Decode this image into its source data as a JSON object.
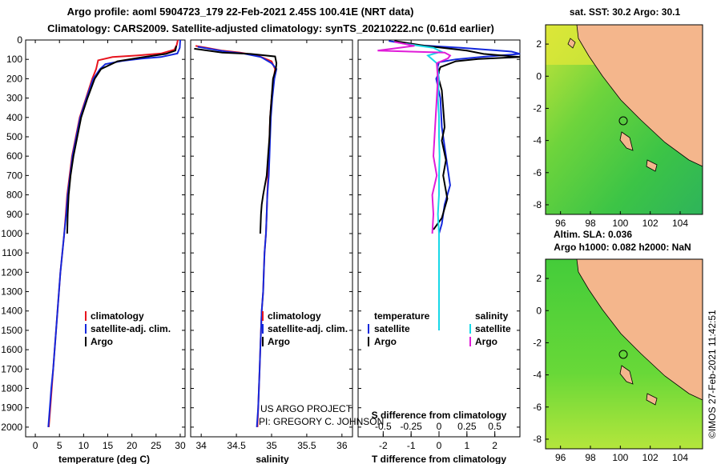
{
  "header": {
    "line1": "Argo profile: aoml 5904723_179 22-Feb-2021 2.45S 100.41E (NRT data)",
    "line2": "Climatology: CARS2009. Satellite-adjusted climatology: synTS_20210222.nc (0.61d earlier)"
  },
  "colors": {
    "climatology": "#e8141e",
    "satellite": "#1428dc",
    "argo": "#000000",
    "sat_salinity": "#18d8e8",
    "argo_salinity": "#e01cd8"
  },
  "chart_data": [
    {
      "type": "line",
      "id": "temperature",
      "xlabel": "temperature (deg C)",
      "xlim": [
        -2,
        31
      ],
      "ylim": [
        2050,
        0
      ],
      "xticks": [
        0,
        5,
        10,
        15,
        20,
        25,
        30
      ],
      "yticks": [
        0,
        100,
        200,
        300,
        400,
        500,
        600,
        700,
        800,
        900,
        1000,
        1100,
        1200,
        1300,
        1400,
        1500,
        1600,
        1700,
        1800,
        1900,
        2000
      ],
      "legend": {
        "climatology": "climatology",
        "satellite": "satellite-adj. clim.",
        "argo": "Argo"
      },
      "series": [
        {
          "name": "climatology",
          "color": "#e8141e",
          "points": [
            [
              29.5,
              0
            ],
            [
              29.3,
              25
            ],
            [
              28.8,
              50
            ],
            [
              26,
              70
            ],
            [
              21,
              80
            ],
            [
              16,
              88
            ],
            [
              13,
              105
            ],
            [
              12.6,
              150
            ],
            [
              11.8,
              200
            ],
            [
              10.5,
              300
            ],
            [
              9.2,
              400
            ],
            [
              8.4,
              500
            ],
            [
              7.6,
              600
            ],
            [
              7.1,
              700
            ],
            [
              6.6,
              800
            ],
            [
              6.3,
              900
            ],
            [
              6,
              1000
            ],
            [
              5.6,
              1100
            ],
            [
              5.2,
              1200
            ],
            [
              4.9,
              1300
            ],
            [
              4.6,
              1400
            ],
            [
              4.3,
              1500
            ],
            [
              4,
              1600
            ],
            [
              3.7,
              1700
            ],
            [
              3.4,
              1800
            ],
            [
              3.1,
              1900
            ],
            [
              2.8,
              2000
            ]
          ]
        },
        {
          "name": "satellite",
          "color": "#1428dc",
          "points": [
            [
              30,
              0
            ],
            [
              29.9,
              40
            ],
            [
              29.4,
              70
            ],
            [
              26,
              88
            ],
            [
              22,
              96
            ],
            [
              18,
              108
            ],
            [
              14.5,
              125
            ],
            [
              13.4,
              150
            ],
            [
              12,
              200
            ],
            [
              10.6,
              300
            ],
            [
              9.3,
              400
            ],
            [
              8.5,
              500
            ],
            [
              7.7,
              600
            ],
            [
              7.2,
              700
            ],
            [
              6.7,
              800
            ],
            [
              6.4,
              900
            ],
            [
              6,
              1000
            ],
            [
              5.6,
              1100
            ],
            [
              5.2,
              1200
            ],
            [
              4.9,
              1300
            ],
            [
              4.6,
              1400
            ],
            [
              4.3,
              1500
            ],
            [
              4,
              1600
            ],
            [
              3.7,
              1700
            ],
            [
              3.3,
              1800
            ],
            [
              3,
              1900
            ],
            [
              2.7,
              2000
            ]
          ]
        },
        {
          "name": "argo",
          "color": "#000000",
          "points": [
            [
              29.2,
              30
            ],
            [
              29,
              55
            ],
            [
              27,
              72
            ],
            [
              22,
              90
            ],
            [
              17,
              110
            ],
            [
              13.6,
              150
            ],
            [
              12.3,
              200
            ],
            [
              10.8,
              300
            ],
            [
              9.5,
              400
            ],
            [
              8.7,
              500
            ],
            [
              7.9,
              600
            ],
            [
              7.3,
              700
            ],
            [
              6.9,
              800
            ],
            [
              6.7,
              900
            ],
            [
              6.6,
              1000
            ]
          ]
        }
      ]
    },
    {
      "type": "line",
      "id": "salinity",
      "xlabel": "salinity",
      "xlim": [
        33.85,
        36.15
      ],
      "ylim": [
        2050,
        0
      ],
      "xticks": [
        34,
        34.5,
        35,
        35.5,
        36
      ],
      "legend": {
        "climatology": "climatology",
        "satellite": "satellite-adj. clim.",
        "argo": "Argo"
      },
      "annotation": [
        "US ARGO PROJECT",
        "PI: GREGORY C. JOHNSON"
      ],
      "series": [
        {
          "name": "climatology",
          "color": "#e8141e",
          "points": [
            [
              33.92,
              30
            ],
            [
              34.3,
              55
            ],
            [
              34.55,
              65
            ],
            [
              34.8,
              80
            ],
            [
              35,
              110
            ],
            [
              35.05,
              150
            ],
            [
              35.03,
              200
            ],
            [
              35,
              300
            ],
            [
              34.98,
              400
            ],
            [
              34.97,
              500
            ],
            [
              34.96,
              600
            ],
            [
              34.95,
              700
            ],
            [
              34.94,
              800
            ],
            [
              34.93,
              900
            ],
            [
              34.92,
              1000
            ],
            [
              34.9,
              1100
            ],
            [
              34.89,
              1200
            ],
            [
              34.88,
              1300
            ],
            [
              34.86,
              1400
            ],
            [
              34.85,
              1500
            ],
            [
              34.84,
              1600
            ],
            [
              34.83,
              1700
            ],
            [
              34.82,
              1800
            ],
            [
              34.81,
              1900
            ],
            [
              34.8,
              2000
            ]
          ]
        },
        {
          "name": "satellite",
          "color": "#1428dc",
          "points": [
            [
              33.95,
              35
            ],
            [
              34.35,
              60
            ],
            [
              34.6,
              70
            ],
            [
              34.85,
              88
            ],
            [
              35,
              120
            ],
            [
              35.07,
              150
            ],
            [
              35.04,
              200
            ],
            [
              35.01,
              300
            ],
            [
              34.99,
              400
            ],
            [
              34.98,
              500
            ],
            [
              34.97,
              600
            ],
            [
              34.96,
              700
            ],
            [
              34.94,
              800
            ],
            [
              34.93,
              900
            ],
            [
              34.92,
              1000
            ],
            [
              34.9,
              1100
            ],
            [
              34.89,
              1200
            ],
            [
              34.88,
              1300
            ],
            [
              34.86,
              1400
            ],
            [
              34.85,
              1500
            ],
            [
              34.84,
              1600
            ],
            [
              34.83,
              1700
            ],
            [
              34.82,
              1800
            ],
            [
              34.81,
              1900
            ],
            [
              34.79,
              2000
            ]
          ]
        },
        {
          "name": "argo",
          "color": "#000000",
          "points": [
            [
              33.9,
              45
            ],
            [
              34.3,
              65
            ],
            [
              34.7,
              72
            ],
            [
              35.05,
              85
            ],
            [
              35.07,
              120
            ],
            [
              35.06,
              150
            ],
            [
              35.02,
              200
            ],
            [
              35,
              300
            ],
            [
              34.98,
              400
            ],
            [
              34.97,
              500
            ],
            [
              34.95,
              600
            ],
            [
              34.93,
              700
            ],
            [
              34.88,
              800
            ],
            [
              34.86,
              850
            ],
            [
              34.85,
              900
            ],
            [
              34.84,
              1000
            ]
          ]
        }
      ]
    },
    {
      "type": "line",
      "id": "difference",
      "xlabel": "T difference from climatology",
      "xlim": [
        -2.9,
        2.9
      ],
      "ylim": [
        2050,
        0
      ],
      "xticks": [
        -2,
        -1,
        0,
        1,
        2
      ],
      "sxlabel": "S difference from climatology",
      "sxlim": [
        -0.725,
        0.725
      ],
      "sxticks": [
        -0.5,
        -0.25,
        0,
        0.25,
        0.5
      ],
      "sxtick_labels": [
        "-0.5",
        "-0.25",
        "0",
        "0.25",
        "0.5"
      ],
      "legend": {
        "temperature": "temperature",
        "salinity": "salinity",
        "satellite": "satellite",
        "argo": "Argo"
      },
      "series": [
        {
          "name": "T satellite",
          "color": "#1428dc",
          "axis": "T",
          "points": [
            [
              -1.8,
              5
            ],
            [
              -1,
              25
            ],
            [
              0.8,
              40
            ],
            [
              2.6,
              60
            ],
            [
              2.9,
              72
            ],
            [
              1.5,
              88
            ],
            [
              0.6,
              100
            ],
            [
              0,
              115
            ],
            [
              -0.05,
              140
            ],
            [
              0,
              170
            ],
            [
              -0.1,
              200
            ],
            [
              0.05,
              300
            ],
            [
              0.1,
              450
            ],
            [
              0.2,
              550
            ],
            [
              0.3,
              650
            ],
            [
              0.4,
              750
            ],
            [
              0.2,
              850
            ],
            [
              0.1,
              950
            ],
            [
              0,
              1000
            ],
            [
              0,
              1100
            ],
            [
              0,
              1200
            ],
            [
              0,
              1300
            ],
            [
              0,
              1400
            ],
            [
              0,
              1500
            ]
          ]
        },
        {
          "name": "T argo",
          "color": "#000000",
          "axis": "T",
          "points": [
            [
              -1.6,
              5
            ],
            [
              -0.5,
              30
            ],
            [
              1,
              55
            ],
            [
              1.6,
              72
            ],
            [
              2.9,
              88
            ],
            [
              1.4,
              98
            ],
            [
              0.6,
              110
            ],
            [
              0.05,
              140
            ],
            [
              -0.05,
              180
            ],
            [
              0.1,
              260
            ],
            [
              0.15,
              350
            ],
            [
              0.2,
              450
            ],
            [
              0.1,
              520
            ],
            [
              0.25,
              620
            ],
            [
              0.15,
              700
            ],
            [
              0.3,
              820
            ],
            [
              0.1,
              920
            ],
            [
              -0.2,
              980
            ]
          ]
        },
        {
          "name": "S satellite",
          "color": "#18d8e8",
          "axis": "S",
          "points": [
            [
              -0.3,
              20
            ],
            [
              -0.05,
              40
            ],
            [
              0.02,
              60
            ],
            [
              -0.1,
              80
            ],
            [
              -0.02,
              120
            ],
            [
              0,
              200
            ],
            [
              -0.01,
              300
            ],
            [
              0,
              400
            ],
            [
              0,
              500
            ],
            [
              0.005,
              600
            ],
            [
              0,
              700
            ],
            [
              0,
              800
            ],
            [
              -0.01,
              900
            ],
            [
              0,
              1000
            ],
            [
              0,
              1100
            ],
            [
              0,
              1200
            ],
            [
              0,
              1300
            ],
            [
              0,
              1400
            ],
            [
              0,
              1500
            ]
          ]
        },
        {
          "name": "S argo",
          "color": "#e01cd8",
          "axis": "S",
          "points": [
            [
              -0.4,
              10
            ],
            [
              -0.22,
              30
            ],
            [
              -0.55,
              55
            ],
            [
              0.05,
              65
            ],
            [
              0.1,
              80
            ],
            [
              0.08,
              95
            ],
            [
              -0.02,
              120
            ],
            [
              -0.01,
              200
            ],
            [
              -0.02,
              300
            ],
            [
              -0.03,
              400
            ],
            [
              -0.04,
              500
            ],
            [
              -0.05,
              600
            ],
            [
              -0.02,
              700
            ],
            [
              -0.06,
              800
            ],
            [
              -0.05,
              900
            ],
            [
              -0.06,
              1000
            ]
          ]
        }
      ]
    }
  ],
  "maps": [
    {
      "title": "sat. SST: 30.2 Argo: 30.1",
      "xticks": [
        "96",
        "98",
        "100",
        "102",
        "104"
      ],
      "yticks": [
        "2",
        "0",
        "-2",
        "-4",
        "-6",
        "-8"
      ]
    },
    {
      "title": "Altim. SLA: 0.036",
      "subtitle": "Argo h1000: 0.082 h2000: NaN",
      "xticks": [
        "96",
        "98",
        "100",
        "102",
        "104"
      ],
      "yticks": [
        "2",
        "0",
        "-2",
        "-4",
        "-6",
        "-8"
      ]
    }
  ],
  "footer": {
    "imos": "©IMOS 27-Feb-2021 11:42:51"
  }
}
